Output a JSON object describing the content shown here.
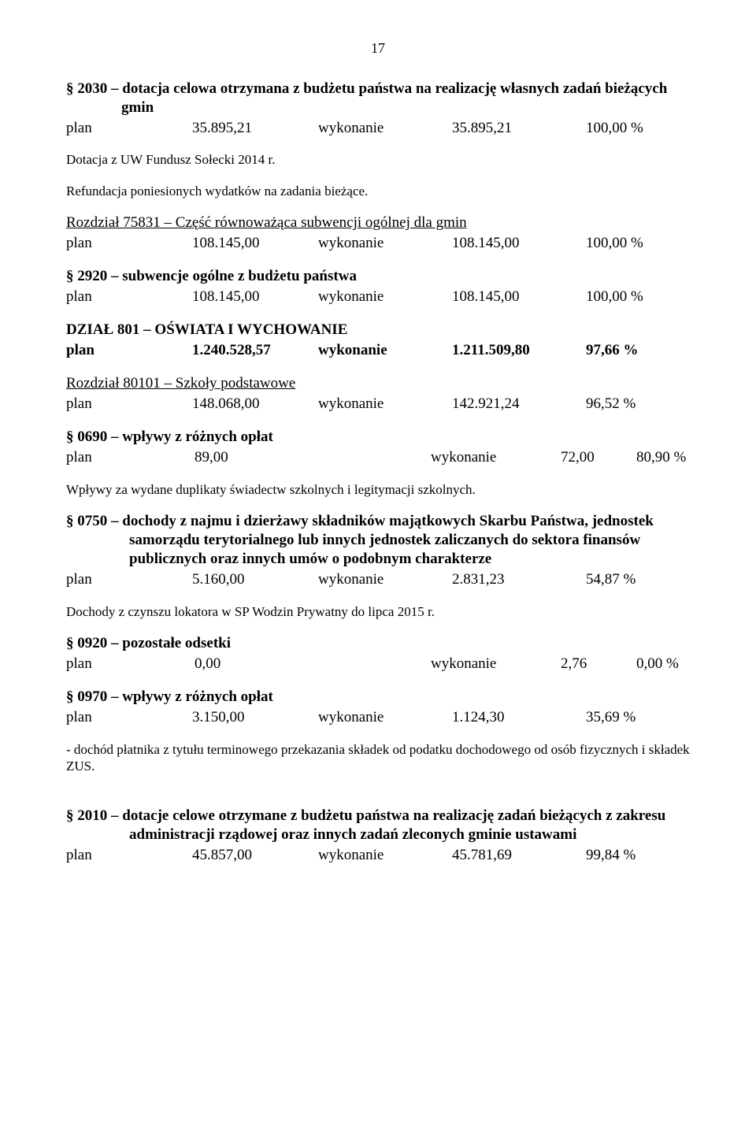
{
  "page_number": "17",
  "s2030": {
    "title": "§ 2030 – dotacja celowa otrzymana z budżetu państwa na realizację własnych zadań bieżących gmin",
    "row": {
      "label": "plan",
      "plan": "35.895,21",
      "wyk": "wykonanie",
      "val": "35.895,21",
      "pct": "100,00 %"
    }
  },
  "dotacja_note": "Dotacja z UW Fundusz Sołecki 2014 r.",
  "refund_note": "Refundacja poniesionych wydatków  na zadania bieżące.",
  "r75831": {
    "title": "Rozdział 75831 – Część równoważąca subwencji ogólnej dla gmin",
    "row": {
      "label": "plan",
      "plan": "108.145,00",
      "wyk": "wykonanie",
      "val": "108.145,00",
      "pct": "100,00 %"
    }
  },
  "s2920": {
    "title": "§ 2920 – subwencje ogólne z budżetu państwa",
    "row": {
      "label": "plan",
      "plan": "108.145,00",
      "wyk": "wykonanie",
      "val": "108.145,00",
      "pct": "100,00 %"
    }
  },
  "d801": {
    "title": "DZIAŁ 801 – OŚWIATA I WYCHOWANIE",
    "row": {
      "label": "plan",
      "plan": "1.240.528,57",
      "wyk": "wykonanie",
      "val": "1.211.509,80",
      "pct": "97,66 %"
    }
  },
  "r80101": {
    "title": "Rozdział 80101 – Szkoły podstawowe",
    "row": {
      "label": "plan",
      "plan": "148.068,00",
      "wyk": "wykonanie",
      "val": "142.921,24",
      "pct": "96,52 %"
    }
  },
  "s0690": {
    "title": "§ 0690 – wpływy z różnych opłat",
    "row": {
      "label": "plan",
      "plan": "89,00",
      "wyk": "wykonanie",
      "val": "72,00",
      "pct": "80,90 %"
    }
  },
  "dup_note": "Wpływy za wydane duplikaty świadectw szkolnych i legitymacji szkolnych.",
  "s0750": {
    "title": "§ 0750 – dochody z najmu i dzierżawy składników majątkowych Skarbu Państwa, jednostek samorządu terytorialnego lub innych jednostek zaliczanych do sektora finansów publicznych oraz innych umów o podobnym charakterze",
    "row": {
      "label": "plan",
      "plan": "5.160,00",
      "wyk": "wykonanie",
      "val": "2.831,23",
      "pct": "54,87 %"
    }
  },
  "czynsz_note": "Dochody z czynszu lokatora w SP Wodzin Prywatny do lipca 2015 r.",
  "s0920": {
    "title": "§ 0920 – pozostałe odsetki",
    "row": {
      "label": " plan",
      "plan": "0,00",
      "wyk": "wykonanie",
      "val": "2,76",
      "pct": "0,00 %"
    }
  },
  "s0970": {
    "title": "§ 0970 – wpływy z różnych opłat",
    "row": {
      "label": "plan",
      "plan": "3.150,00",
      "wyk": "wykonanie",
      "val": "1.124,30",
      "pct": "35,69 %"
    }
  },
  "zus_note": "- dochód płatnika z tytułu terminowego przekazania składek od podatku dochodowego od osób fizycznych i składek ZUS.",
  "s2010": {
    "title": "§ 2010 – dotacje celowe otrzymane z budżetu państwa na realizację zadań bieżących z zakresu administracji rządowej oraz innych zadań zleconych gminie ustawami",
    "row": {
      "label": "plan",
      "plan": "45.857,00",
      "wyk": "wykonanie",
      "val": "45.781,69",
      "pct": "99,84 %"
    }
  }
}
